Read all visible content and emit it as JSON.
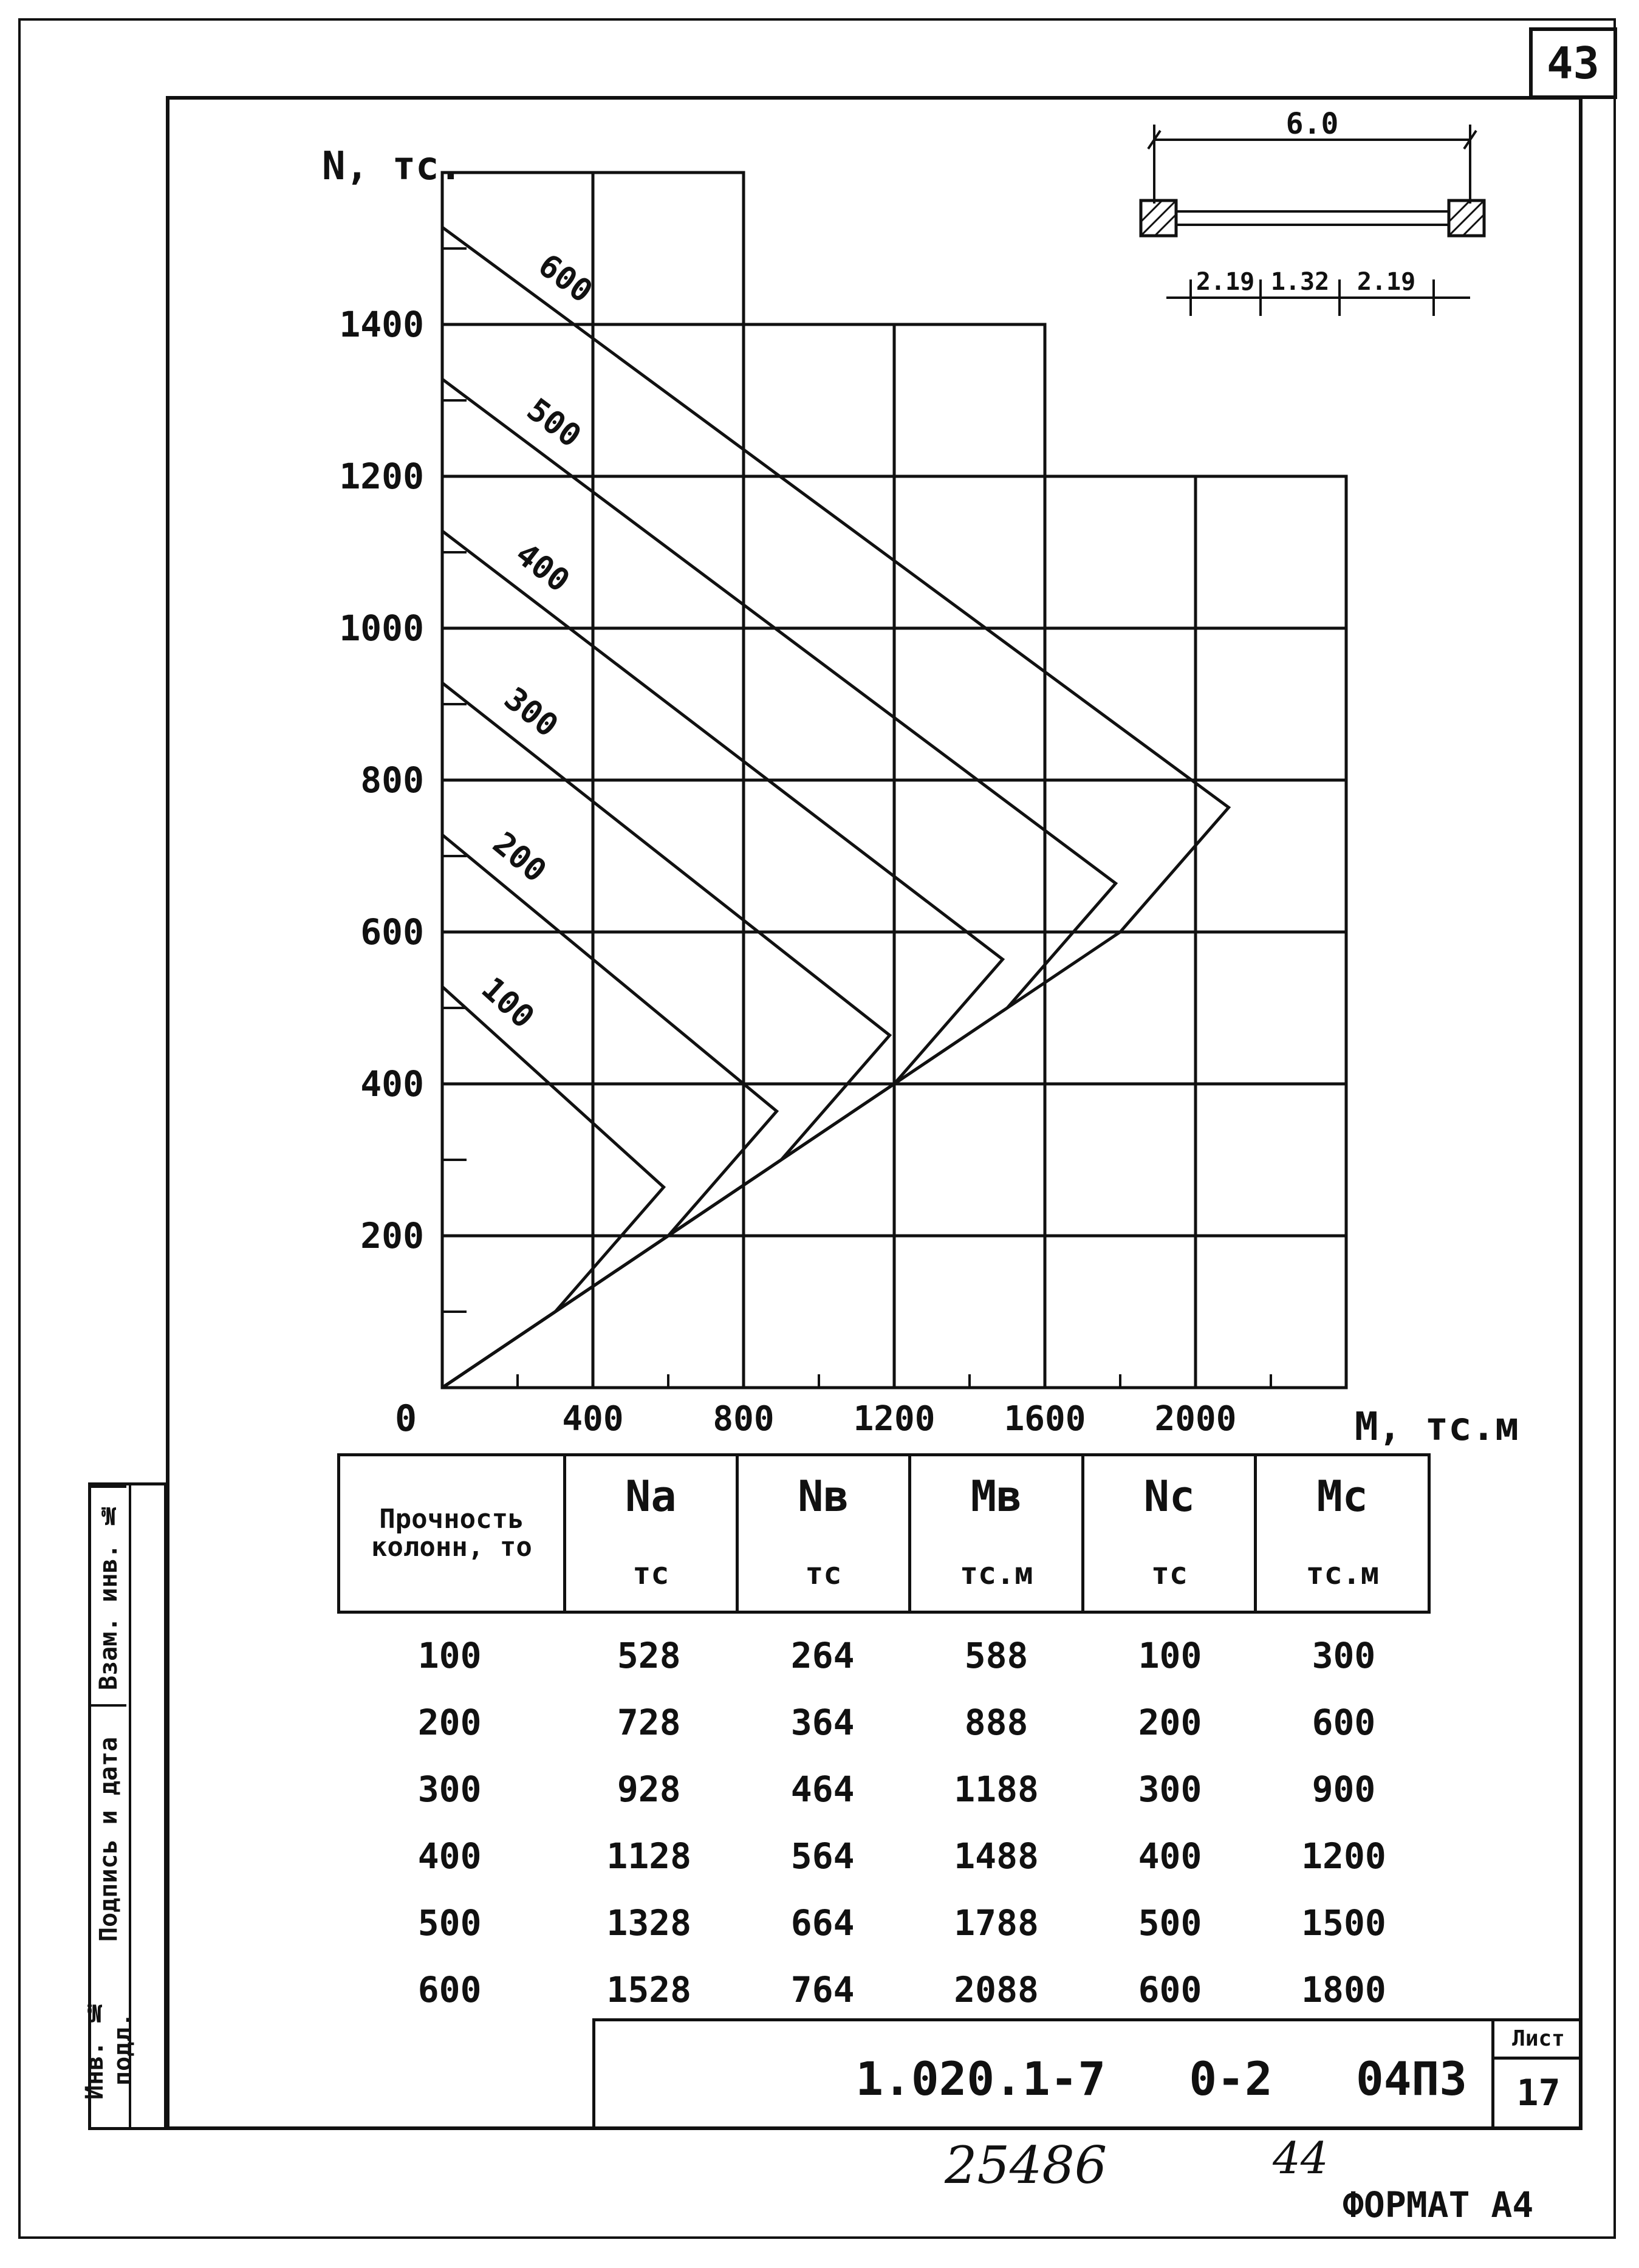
{
  "page_number": "43",
  "section_sketch": {
    "total": "6.0",
    "parts": [
      "2.19",
      "1.32",
      "2.19"
    ]
  },
  "chart_data": {
    "type": "line",
    "xlabel": "M, тс.м",
    "ylabel": "N, тс.",
    "origin_label": "0",
    "xlim": [
      0,
      2400
    ],
    "ylim": [
      0,
      1600
    ],
    "x_ticks": [
      400,
      800,
      1200,
      1600,
      2000
    ],
    "y_ticks": [
      200,
      400,
      600,
      800,
      1000,
      1200,
      1400
    ],
    "x_tick_labels": [
      "400",
      "800",
      "1200",
      "1600",
      "2000"
    ],
    "y_tick_labels": [
      "200",
      "400",
      "600",
      "800",
      "1000",
      "1200",
      "1400"
    ],
    "series": [
      {
        "name": "100",
        "points": [
          [
            0,
            528
          ],
          [
            588,
            264
          ],
          [
            300,
            100
          ],
          [
            0,
            0
          ]
        ]
      },
      {
        "name": "200",
        "points": [
          [
            0,
            728
          ],
          [
            888,
            364
          ],
          [
            600,
            200
          ],
          [
            0,
            0
          ]
        ]
      },
      {
        "name": "300",
        "points": [
          [
            0,
            928
          ],
          [
            1188,
            464
          ],
          [
            900,
            300
          ],
          [
            0,
            0
          ]
        ]
      },
      {
        "name": "400",
        "points": [
          [
            0,
            1128
          ],
          [
            1488,
            564
          ],
          [
            1200,
            400
          ],
          [
            0,
            0
          ]
        ]
      },
      {
        "name": "500",
        "points": [
          [
            0,
            1328
          ],
          [
            1788,
            664
          ],
          [
            1500,
            500
          ],
          [
            0,
            0
          ]
        ]
      },
      {
        "name": "600",
        "points": [
          [
            0,
            1528
          ],
          [
            2088,
            764
          ],
          [
            1800,
            600
          ],
          [
            0,
            0
          ]
        ]
      }
    ]
  },
  "table": {
    "headers": [
      {
        "top": "Прочность колонн, то",
        "unit": ""
      },
      {
        "top": "Na",
        "unit": "тс"
      },
      {
        "top": "Nв",
        "unit": "тс"
      },
      {
        "top": "Mв",
        "unit": "тс.м"
      },
      {
        "top": "Nс",
        "unit": "тс"
      },
      {
        "top": "Mс",
        "unit": "тс.м"
      }
    ],
    "rows": [
      [
        "100",
        "528",
        "264",
        "588",
        "100",
        "300"
      ],
      [
        "200",
        "728",
        "364",
        "888",
        "200",
        "600"
      ],
      [
        "300",
        "928",
        "464",
        "1188",
        "300",
        "900"
      ],
      [
        "400",
        "1128",
        "564",
        "1488",
        "400",
        "1200"
      ],
      [
        "500",
        "1328",
        "664",
        "1788",
        "500",
        "1500"
      ],
      [
        "600",
        "1528",
        "764",
        "2088",
        "600",
        "1800"
      ]
    ]
  },
  "side_stamp": [
    "Инв. № подл.",
    "Подпись и дата",
    "Взам. инв. №"
  ],
  "title_block": {
    "code": "1.020.1-7   0-2   04ПЗ",
    "sheet_label": "Лист",
    "sheet_number": "17"
  },
  "handwritten": [
    "25486",
    "44"
  ],
  "format_label": "ФОРМАТ А4"
}
